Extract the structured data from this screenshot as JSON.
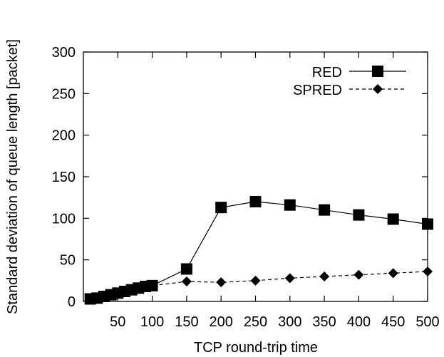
{
  "chart_data": {
    "type": "line",
    "xlabel": "TCP round-trip time",
    "ylabel": "Standard deviation of queue length [packet]",
    "xlim": [
      0,
      500
    ],
    "ylim": [
      0,
      300
    ],
    "x_ticks": [
      50,
      100,
      150,
      200,
      250,
      300,
      350,
      400,
      450,
      500
    ],
    "x_tick_labels": [
      "50",
      "100",
      "150",
      "200",
      "250",
      "300",
      "350",
      "400",
      "450",
      "500"
    ],
    "y_ticks": [
      0,
      50,
      100,
      150,
      200,
      250,
      300
    ],
    "y_tick_labels": [
      "0",
      "50",
      "100",
      "150",
      "200",
      "250",
      "300"
    ],
    "grid": false,
    "legend_position": "top-right",
    "series": [
      {
        "name": "RED",
        "line_style": "solid",
        "marker": "square",
        "x": [
          10,
          20,
          30,
          40,
          50,
          60,
          70,
          80,
          90,
          100,
          150,
          200,
          250,
          300,
          350,
          400,
          450,
          500
        ],
        "y": [
          3,
          4,
          6,
          8,
          10,
          12,
          14,
          16,
          18,
          19,
          39,
          113,
          120,
          116,
          110,
          104,
          99,
          93
        ]
      },
      {
        "name": "SPRED",
        "line_style": "dashed",
        "marker": "diamond",
        "x": [
          10,
          20,
          30,
          40,
          50,
          60,
          70,
          80,
          90,
          100,
          150,
          200,
          250,
          300,
          350,
          400,
          450,
          500
        ],
        "y": [
          3,
          4,
          5,
          7,
          9,
          11,
          13,
          15,
          17,
          19,
          24,
          23,
          25,
          28,
          30,
          32,
          34,
          36
        ]
      }
    ]
  }
}
